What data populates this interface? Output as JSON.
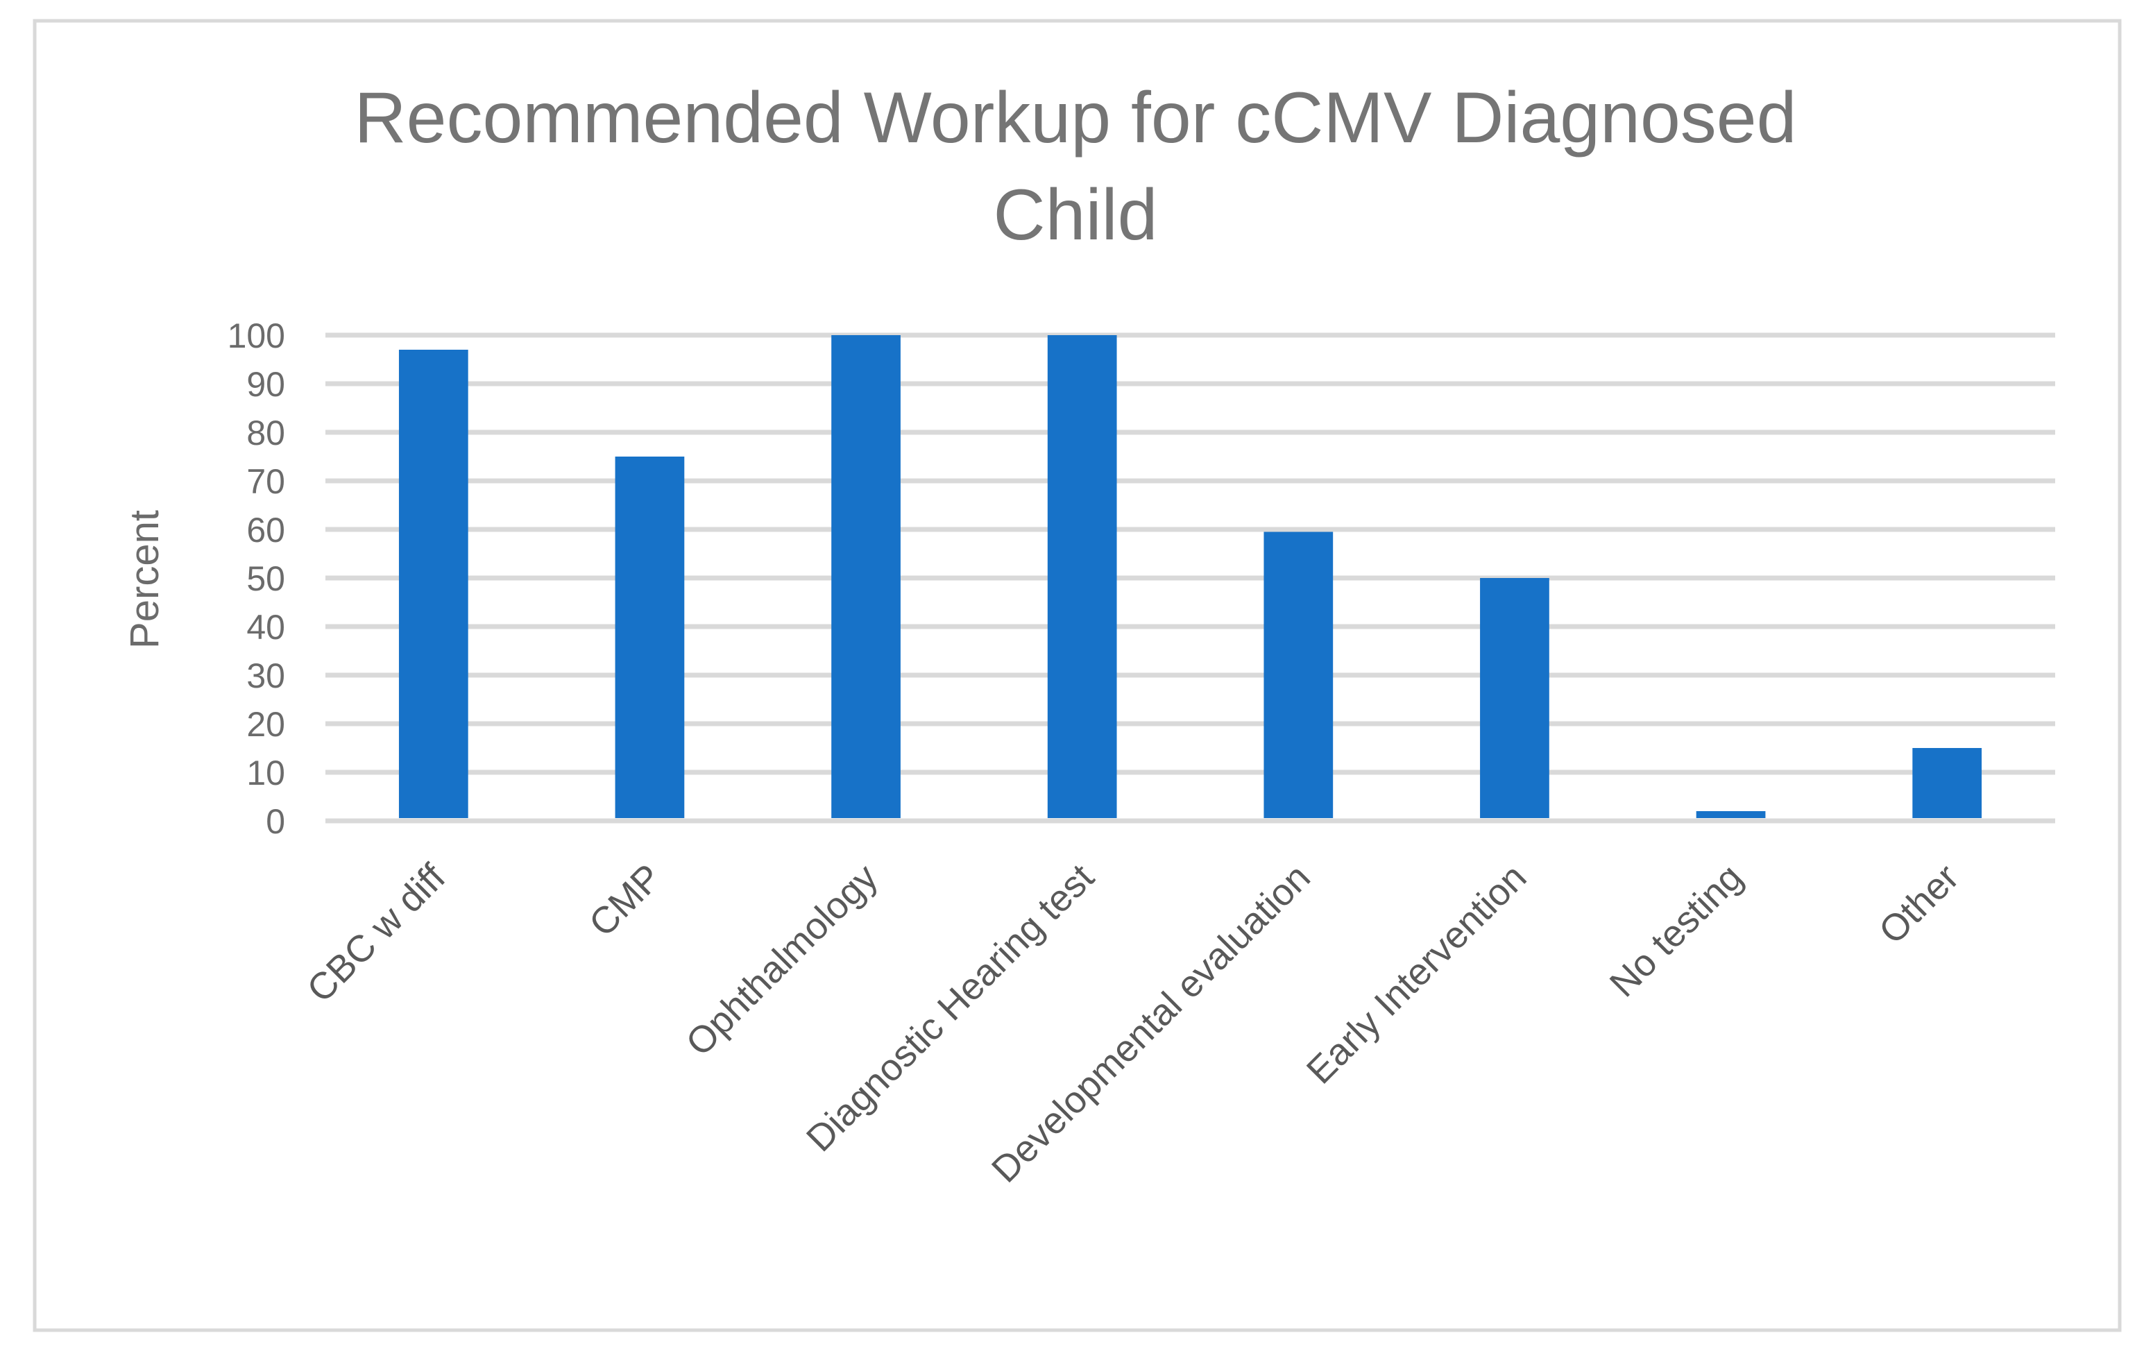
{
  "chart_data": {
    "type": "bar",
    "title": "Recommended Workup for cCMV Diagnosed Child",
    "title_lines": [
      "Recommended Workup for cCMV Diagnosed",
      "Child"
    ],
    "xlabel": "",
    "ylabel": "Percent",
    "categories": [
      "CBC w diff",
      "CMP",
      "Ophthalmology",
      "Diagnostic Hearing test",
      "Developmental evaluation",
      "Early Intervention",
      "No testing",
      "Other"
    ],
    "values": [
      97,
      75,
      100,
      100,
      59.5,
      50,
      2,
      15
    ],
    "ylim": [
      0,
      100
    ],
    "yticks": [
      0,
      10,
      20,
      30,
      40,
      50,
      60,
      70,
      80,
      90,
      100
    ],
    "grid": true,
    "legend": "none",
    "colors": {
      "bar": "#1772c8",
      "grid": "#d9d9d9",
      "border": "#d9d9d9",
      "text": "#6b6b6b"
    }
  }
}
